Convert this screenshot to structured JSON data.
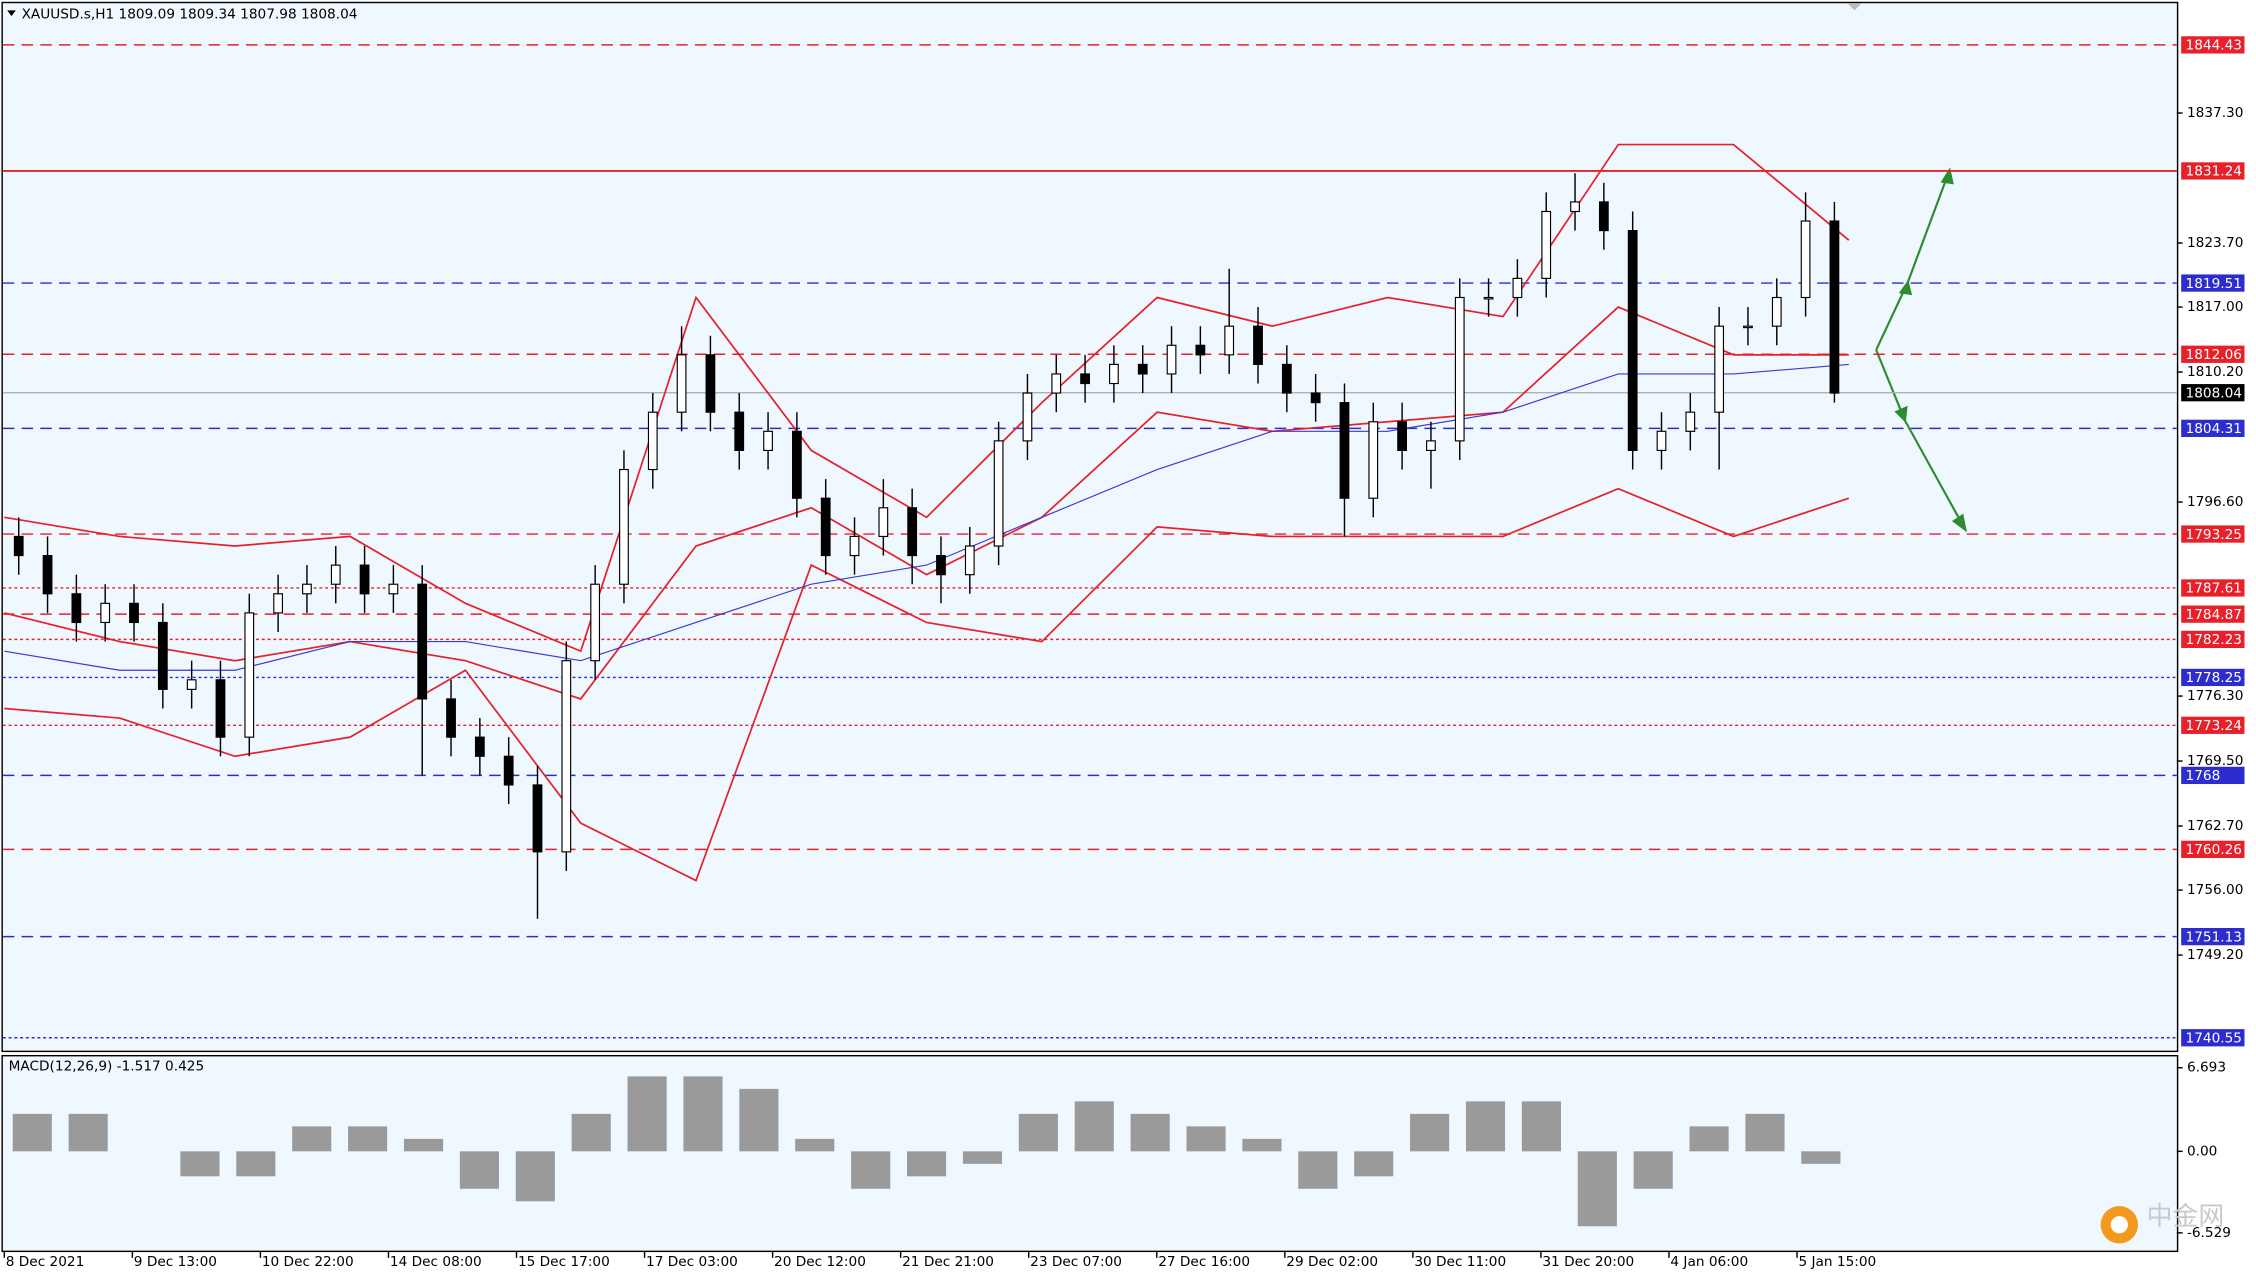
{
  "chart_data": {
    "type": "candlestick",
    "header": "XAUUSD.s,H1  1809.09 1809.34 1807.98 1808.04",
    "ylim": [
      1739.05,
      1848.94
    ],
    "yticks": [
      {
        "value": 1837.3,
        "label": "1837.30"
      },
      {
        "value": 1823.7,
        "label": "1823.70"
      },
      {
        "value": 1817,
        "label": "1817.00"
      },
      {
        "value": 1810.2,
        "label": "1810.20"
      },
      {
        "value": 1796.6,
        "label": "1796.60"
      },
      {
        "value": 1776.3,
        "label": "1776.30"
      },
      {
        "value": 1769.5,
        "label": "1769.50"
      },
      {
        "value": 1762.7,
        "label": "1762.70"
      },
      {
        "value": 1756,
        "label": "1756.00"
      },
      {
        "value": 1749.2,
        "label": "1749.20"
      }
    ],
    "levels": [
      {
        "value": 1844.43,
        "color": "#e8202a",
        "style": "dashed"
      },
      {
        "value": 1831.24,
        "color": "#e8202a",
        "style": "solid"
      },
      {
        "value": 1819.51,
        "color": "#2c2ccf",
        "style": "dashed"
      },
      {
        "value": 1812.06,
        "color": "#e8202a",
        "style": "dashed"
      },
      {
        "value": 1808.04,
        "color": "#000000",
        "style": "current"
      },
      {
        "value": 1804.31,
        "color": "#2c2ccf",
        "style": "dashed"
      },
      {
        "value": 1793.25,
        "color": "#e8202a",
        "style": "dashed"
      },
      {
        "value": 1787.61,
        "color": "#e8202a",
        "style": "dotted"
      },
      {
        "value": 1784.87,
        "color": "#e8202a",
        "style": "dashed"
      },
      {
        "value": 1782.23,
        "color": "#e8202a",
        "style": "dotted"
      },
      {
        "value": 1778.25,
        "color": "#2c2ccf",
        "style": "dotted"
      },
      {
        "value": 1773.24,
        "color": "#e8202a",
        "style": "dotted"
      },
      {
        "value": 1768,
        "color": "#2c2ccf",
        "style": "dashed"
      },
      {
        "value": 1760.26,
        "color": "#e8202a",
        "style": "dashed"
      },
      {
        "value": 1751.13,
        "color": "#2c2ccf",
        "style": "dashed"
      },
      {
        "value": 1740.55,
        "color": "#2c2ccf",
        "style": "dotted"
      }
    ],
    "categories": [
      "8 Dec 2021",
      "9 Dec 13:00",
      "10 Dec 22:00",
      "14 Dec 08:00",
      "15 Dec 17:00",
      "17 Dec 03:00",
      "20 Dec 12:00",
      "21 Dec 21:00",
      "23 Dec 07:00",
      "27 Dec 16:00",
      "29 Dec 02:00",
      "30 Dec 11:00",
      "31 Dec 20:00",
      "4 Jan 06:00",
      "5 Jan 15:00"
    ],
    "open": [
      1793,
      1791,
      1787,
      1784,
      1786,
      1784,
      1777,
      1778,
      1772,
      1785,
      1787,
      1788,
      1790,
      1787,
      1788,
      1776,
      1772,
      1770,
      1767,
      1760,
      1780,
      1788,
      1800,
      1806,
      1812,
      1806,
      1802,
      1804,
      1797,
      1791,
      1793,
      1796,
      1791,
      1789,
      1792,
      1803,
      1808,
      1810,
      1809,
      1811,
      1810,
      1813,
      1812,
      1815,
      1811,
      1808,
      1807,
      1797,
      1805,
      1802,
      1803,
      1818,
      1818,
      1820,
      1827,
      1828,
      1825,
      1802,
      1804,
      1806,
      1815,
      1815,
      1818,
      1826
    ],
    "high": [
      1795,
      1793,
      1789,
      1788,
      1788,
      1786,
      1780,
      1780,
      1787,
      1789,
      1790,
      1792,
      1792,
      1790,
      1790,
      1778,
      1774,
      1772,
      1769,
      1782,
      1790,
      1802,
      1808,
      1815,
      1814,
      1808,
      1806,
      1806,
      1799,
      1795,
      1799,
      1798,
      1793,
      1794,
      1805,
      1810,
      1812,
      1812,
      1813,
      1813,
      1815,
      1815,
      1821,
      1817,
      1813,
      1810,
      1809,
      1807,
      1807,
      1805,
      1820,
      1820,
      1822,
      1829,
      1831,
      1830,
      1827,
      1806,
      1808,
      1817,
      1817,
      1820,
      1829,
      1828
    ],
    "low": [
      1789,
      1785,
      1782,
      1782,
      1782,
      1775,
      1775,
      1770,
      1770,
      1783,
      1785,
      1786,
      1785,
      1785,
      1768,
      1770,
      1768,
      1765,
      1753,
      1758,
      1778,
      1786,
      1798,
      1804,
      1804,
      1800,
      1800,
      1795,
      1789,
      1789,
      1791,
      1788,
      1786,
      1787,
      1790,
      1801,
      1806,
      1807,
      1807,
      1808,
      1808,
      1810,
      1810,
      1809,
      1806,
      1805,
      1793,
      1795,
      1800,
      1798,
      1801,
      1816,
      1816,
      1818,
      1825,
      1823,
      1800,
      1800,
      1802,
      1800,
      1813,
      1813,
      1816,
      1807
    ],
    "close": [
      1791,
      1787,
      1784,
      1786,
      1784,
      1777,
      1778,
      1772,
      1785,
      1787,
      1788,
      1790,
      1787,
      1788,
      1776,
      1772,
      1770,
      1767,
      1760,
      1780,
      1788,
      1800,
      1806,
      1812,
      1806,
      1802,
      1804,
      1797,
      1791,
      1793,
      1796,
      1791,
      1789,
      1792,
      1803,
      1808,
      1810,
      1809,
      1811,
      1810,
      1813,
      1812,
      1815,
      1811,
      1808,
      1807,
      1797,
      1805,
      1802,
      1803,
      1818,
      1818,
      1820,
      1827,
      1828,
      1825,
      1802,
      1804,
      1806,
      1815,
      1815,
      1818,
      1826,
      1808
    ],
    "overlays": [
      {
        "color": "#e8202a",
        "values": [
          1795,
          1793,
          1792,
          1793,
          1786,
          1781,
          1818,
          1802,
          1795,
          1807,
          1818,
          1815,
          1818,
          1816,
          1834,
          1834,
          1824
        ]
      },
      {
        "color": "#e8202a",
        "values": [
          1775,
          1774,
          1770,
          1772,
          1779,
          1763,
          1757,
          1790,
          1784,
          1782,
          1794,
          1793,
          1793,
          1793,
          1798,
          1793,
          1797
        ]
      },
      {
        "color": "#e8202a",
        "values": [
          1785,
          1782,
          1780,
          1782,
          1780,
          1776,
          1792,
          1796,
          1789,
          1795,
          1806,
          1804,
          1805,
          1806,
          1817,
          1812,
          1812
        ]
      },
      {
        "color": "#3a3ad0",
        "values": [
          1781,
          1779,
          1779,
          1782,
          1782,
          1780,
          1784,
          1788,
          1790,
          1795,
          1800,
          1804,
          1804,
          1806,
          1810,
          1810,
          1811
        ]
      }
    ],
    "macd_label": "MACD(12,26,9) -1.517 0.425",
    "macd_lim": [
      -7.95,
      7.6
    ],
    "macd_ticks": [
      6.693,
      {
        "value": 0,
        "label": "0.00"
      },
      -6.529
    ],
    "macd_color": "#9a9a9a",
    "macd_values": [
      3,
      3,
      0,
      -2,
      -2,
      2,
      2,
      1,
      -3,
      -4,
      3,
      6,
      6,
      5,
      1,
      -3,
      -2,
      -1,
      3,
      4,
      3,
      2,
      1,
      -3,
      -2,
      3,
      4,
      4,
      -6,
      -3,
      2,
      3,
      -1
    ],
    "logo": "中金网"
  }
}
